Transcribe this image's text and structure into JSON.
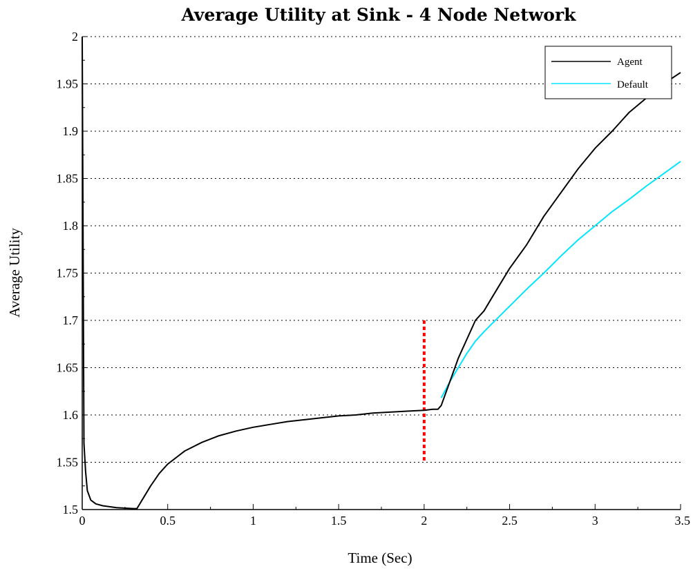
{
  "chart_data": {
    "type": "line",
    "title": "Average Utility at Sink - 4 Node Network",
    "xlabel": "Time (Sec)",
    "ylabel": "Average Utility",
    "xlim": [
      0,
      3.5
    ],
    "ylim": [
      1.5,
      2
    ],
    "xticks": [
      0,
      0.5,
      1,
      1.5,
      2,
      2.5,
      3,
      3.5
    ],
    "xtick_labels": [
      "0",
      "0.5",
      "1",
      "1.5",
      "2",
      "2.5",
      "3",
      "3.5"
    ],
    "yticks": [
      1.5,
      1.55,
      1.6,
      1.65,
      1.7,
      1.75,
      1.8,
      1.85,
      1.9,
      1.95,
      2
    ],
    "ytick_labels": [
      "1.5",
      "1.55",
      "1.6",
      "1.65",
      "1.7",
      "1.75",
      "1.8",
      "1.85",
      "1.9",
      "1.95",
      "2"
    ],
    "grid": "horizontal-dotted",
    "legend_position": "top-right",
    "series": [
      {
        "name": "Agent",
        "color": "#000000",
        "x": [
          0.0,
          0.01,
          0.02,
          0.03,
          0.05,
          0.08,
          0.12,
          0.2,
          0.3,
          0.32,
          0.35,
          0.4,
          0.45,
          0.5,
          0.6,
          0.7,
          0.8,
          0.9,
          1.0,
          1.1,
          1.2,
          1.3,
          1.4,
          1.5,
          1.6,
          1.7,
          1.8,
          1.9,
          2.0,
          2.05,
          2.08,
          2.1,
          2.15,
          2.2,
          2.3,
          2.35,
          2.4,
          2.5,
          2.6,
          2.7,
          2.8,
          2.9,
          3.0,
          3.1,
          3.2,
          3.3,
          3.4,
          3.5
        ],
        "y": [
          2.0,
          1.57,
          1.54,
          1.52,
          1.51,
          1.506,
          1.504,
          1.502,
          1.501,
          1.501,
          1.51,
          1.525,
          1.538,
          1.548,
          1.562,
          1.571,
          1.578,
          1.583,
          1.587,
          1.59,
          1.593,
          1.595,
          1.597,
          1.599,
          1.6,
          1.602,
          1.603,
          1.604,
          1.605,
          1.606,
          1.606,
          1.61,
          1.635,
          1.66,
          1.7,
          1.71,
          1.725,
          1.755,
          1.78,
          1.81,
          1.835,
          1.86,
          1.882,
          1.9,
          1.92,
          1.935,
          1.95,
          1.962
        ]
      },
      {
        "name": "Default",
        "color": "#00e5ff",
        "x": [
          2.1,
          2.15,
          2.2,
          2.25,
          2.3,
          2.35,
          2.4,
          2.5,
          2.6,
          2.7,
          2.8,
          2.9,
          3.0,
          3.1,
          3.2,
          3.3,
          3.4,
          3.5
        ],
        "y": [
          1.618,
          1.635,
          1.65,
          1.665,
          1.678,
          1.688,
          1.697,
          1.715,
          1.733,
          1.75,
          1.768,
          1.785,
          1.8,
          1.815,
          1.828,
          1.842,
          1.855,
          1.868
        ]
      }
    ],
    "annotations": [
      {
        "type": "vertical-dotted-line",
        "color": "#ff0000",
        "x": 2.0,
        "y_from": 1.55,
        "y_to": 1.7
      }
    ]
  }
}
